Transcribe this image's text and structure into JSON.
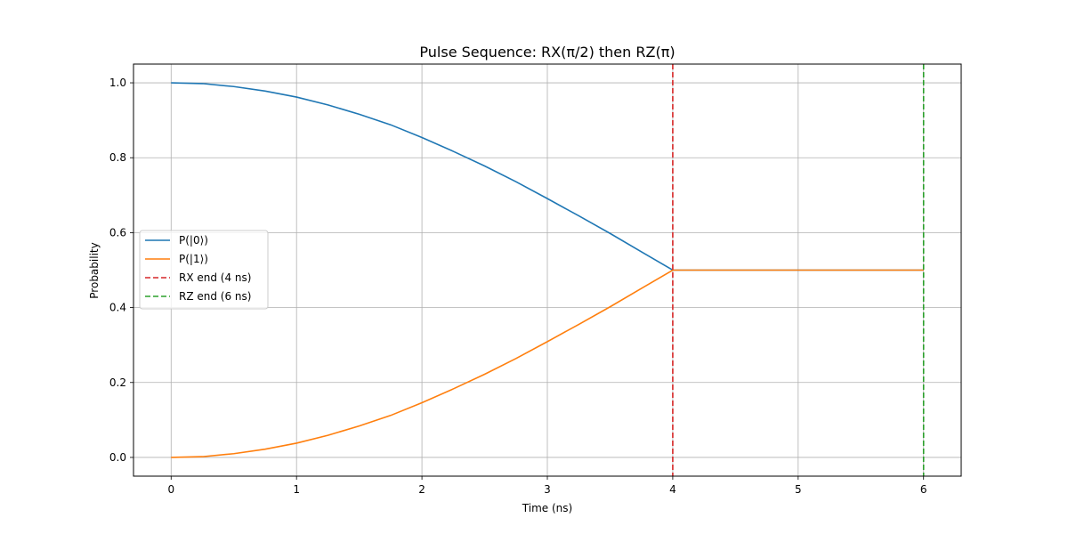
{
  "chart_data": {
    "type": "line",
    "title": "Pulse Sequence: RX(π/2) then RZ(π)",
    "xlabel": "Time (ns)",
    "ylabel": "Probability",
    "xlim": [
      -0.3,
      6.3
    ],
    "ylim": [
      -0.05,
      1.05
    ],
    "xticks": [
      0,
      1,
      2,
      3,
      4,
      5,
      6
    ],
    "xtick_labels": [
      "0",
      "1",
      "2",
      "3",
      "4",
      "5",
      "6"
    ],
    "yticks": [
      0.0,
      0.2,
      0.4,
      0.6,
      0.8,
      1.0
    ],
    "ytick_labels": [
      "0.0",
      "0.2",
      "0.4",
      "0.6",
      "0.8",
      "1.0"
    ],
    "grid": true,
    "legend_position": "center-left",
    "series": [
      {
        "name": "P(|0⟩)",
        "color": "#1f77b4",
        "style": "solid",
        "x": [
          0,
          0.25,
          0.5,
          0.75,
          1.0,
          1.25,
          1.5,
          1.75,
          2.0,
          2.25,
          2.5,
          2.75,
          3.0,
          3.25,
          3.5,
          3.75,
          4.0,
          4.5,
          5.0,
          5.5,
          6.0
        ],
        "y": [
          1.0,
          0.998,
          0.99,
          0.978,
          0.962,
          0.941,
          0.916,
          0.888,
          0.854,
          0.817,
          0.778,
          0.736,
          0.691,
          0.645,
          0.598,
          0.549,
          0.5,
          0.5,
          0.5,
          0.5,
          0.5
        ]
      },
      {
        "name": "P(|1⟩)",
        "color": "#ff7f0e",
        "style": "solid",
        "x": [
          0,
          0.25,
          0.5,
          0.75,
          1.0,
          1.25,
          1.5,
          1.75,
          2.0,
          2.25,
          2.5,
          2.75,
          3.0,
          3.25,
          3.5,
          3.75,
          4.0,
          4.5,
          5.0,
          5.5,
          6.0
        ],
        "y": [
          0.0,
          0.002,
          0.01,
          0.022,
          0.038,
          0.059,
          0.084,
          0.112,
          0.146,
          0.183,
          0.222,
          0.264,
          0.309,
          0.355,
          0.402,
          0.451,
          0.5,
          0.5,
          0.5,
          0.5,
          0.5
        ]
      }
    ],
    "vlines": [
      {
        "name": "RX end (4 ns)",
        "x": 4,
        "color": "#d62728",
        "style": "dashed"
      },
      {
        "name": "RZ end (6 ns)",
        "x": 6,
        "color": "#2ca02c",
        "style": "dashed"
      }
    ]
  }
}
